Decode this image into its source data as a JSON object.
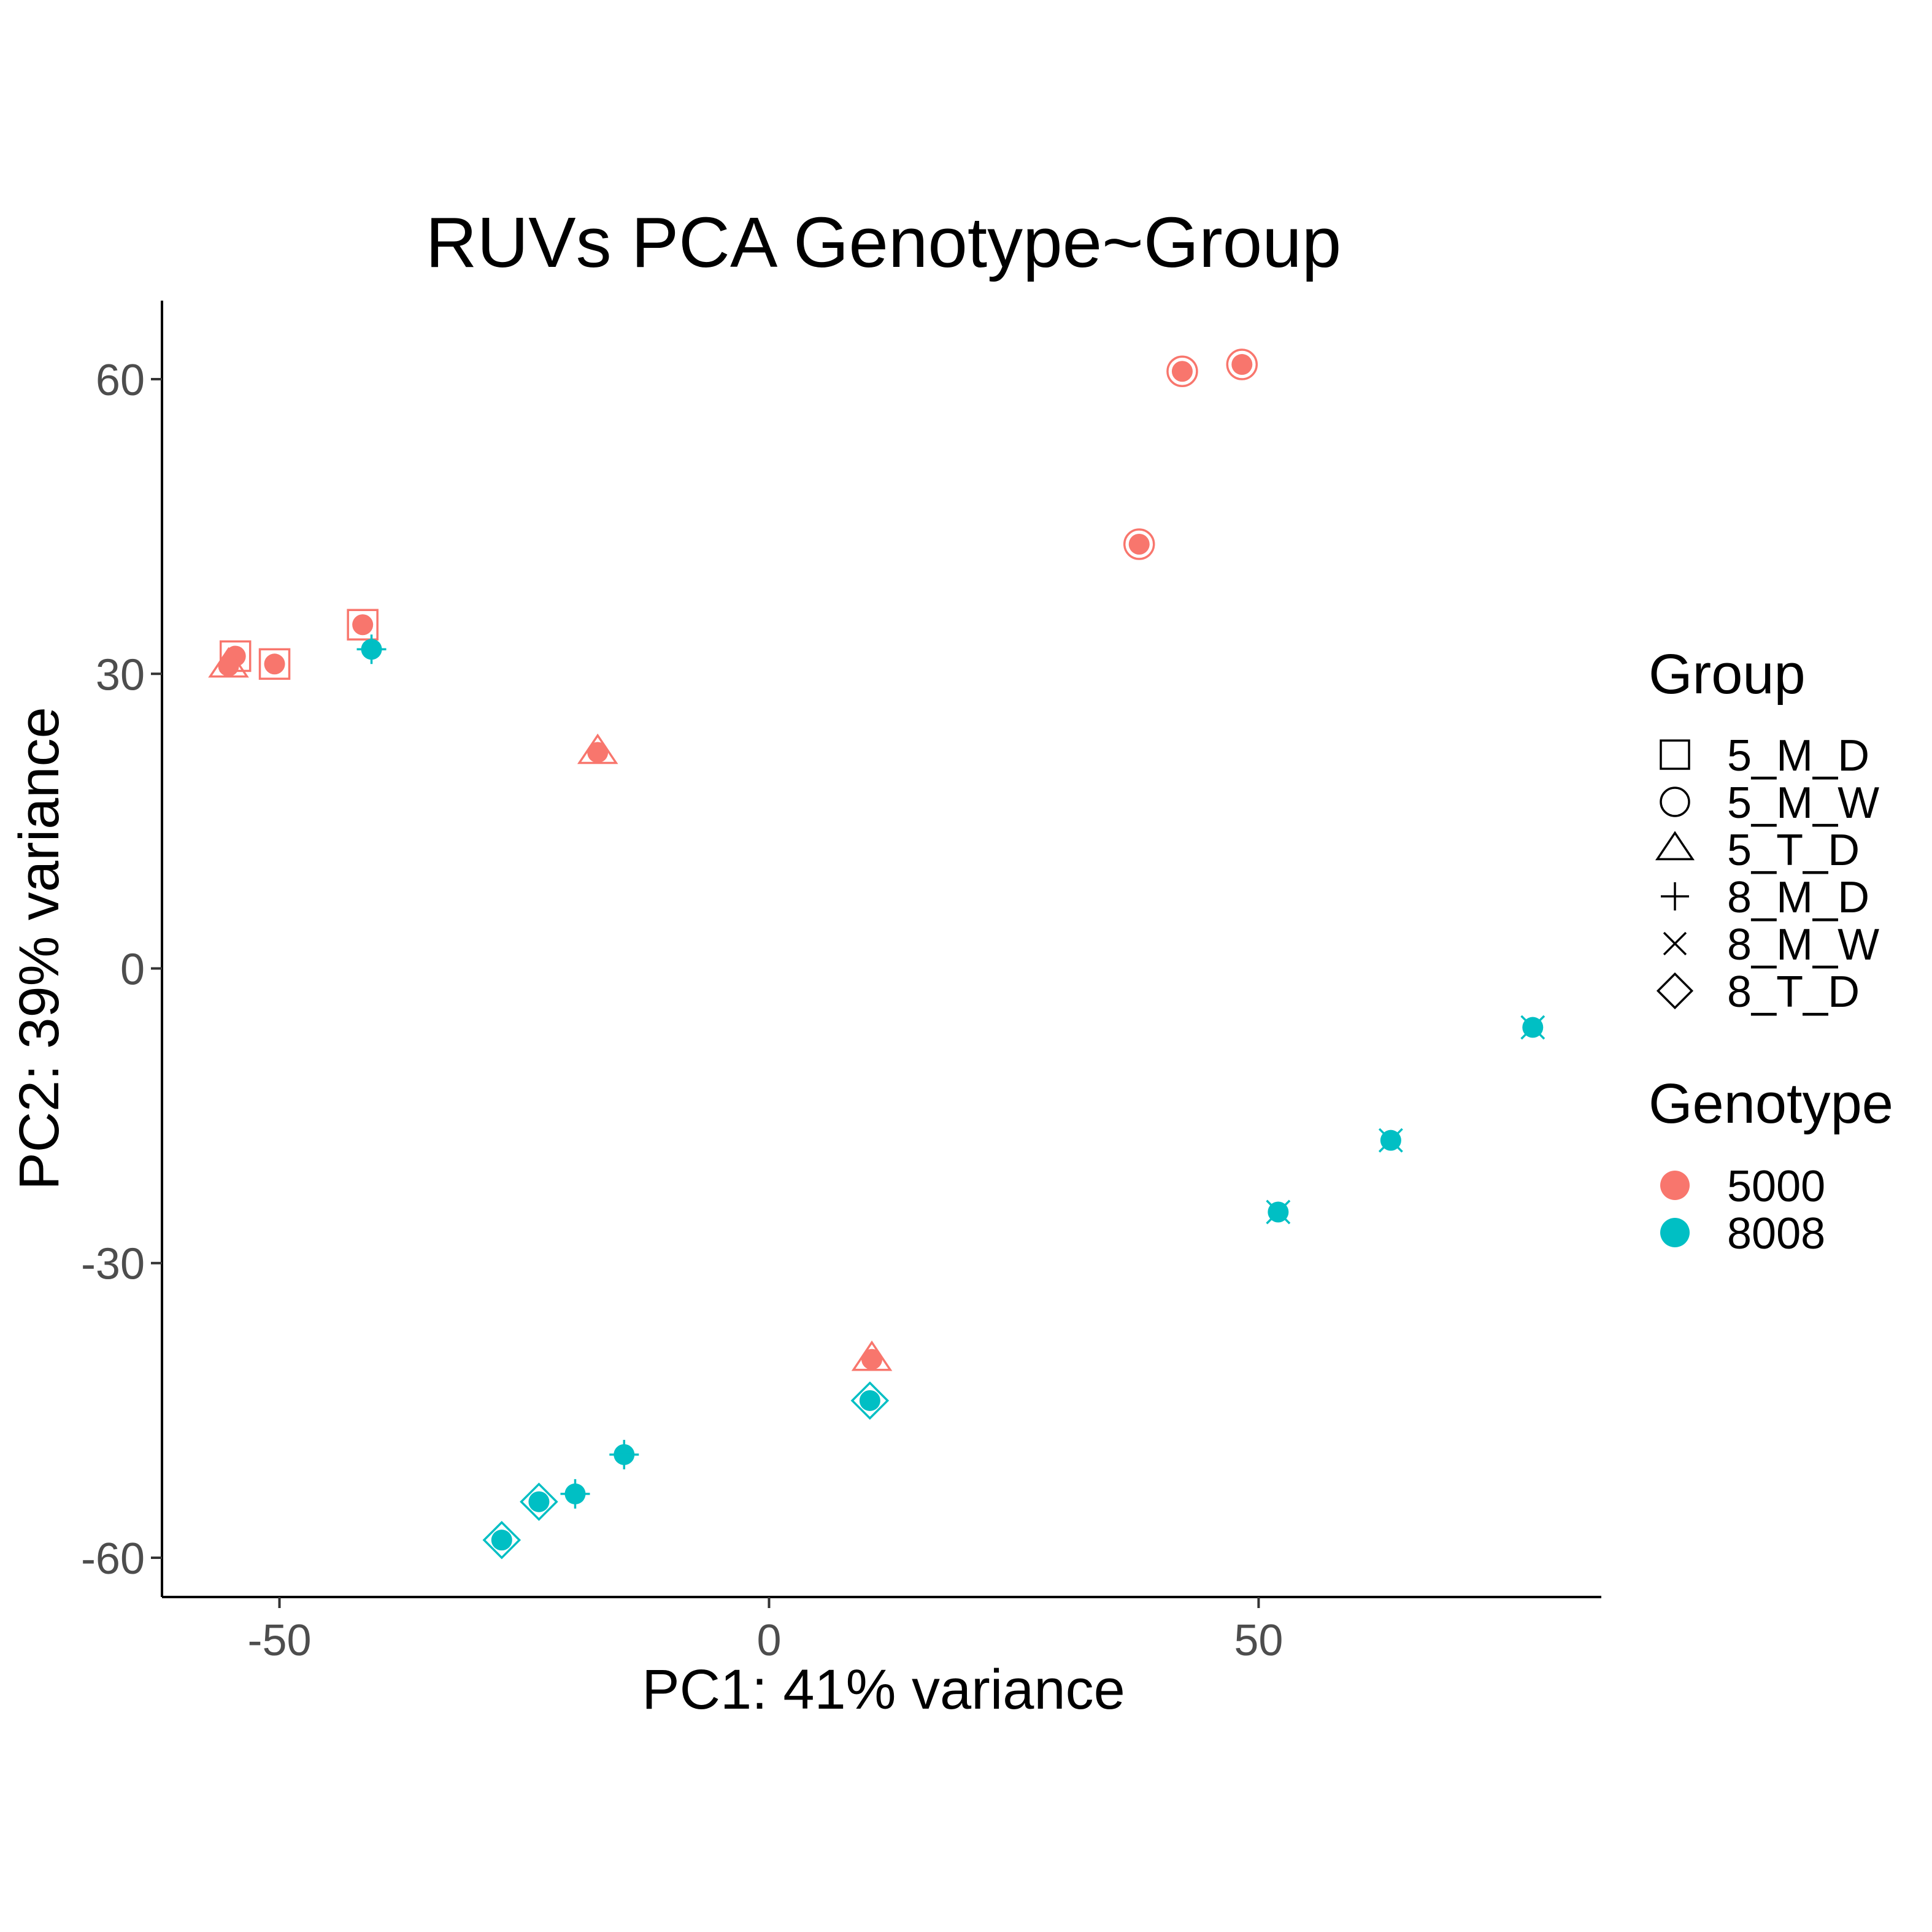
{
  "chart_data": {
    "type": "scatter",
    "title": "RUVs PCA Genotype~Group",
    "xlabel": "PC1: 41% variance",
    "ylabel": "PC2: 39% variance",
    "xlim": [
      -62,
      85
    ],
    "ylim": [
      -64,
      68
    ],
    "x_ticks": [
      -50,
      0,
      50
    ],
    "y_ticks": [
      -60,
      -30,
      0,
      30,
      60
    ],
    "x_tick_labels": [
      "-50",
      "0",
      "50"
    ],
    "y_tick_labels": [
      "-60",
      "-30",
      "0",
      "30",
      "60"
    ],
    "grid": false,
    "legend_placement": "right",
    "legends": {
      "group": {
        "title": "Group",
        "items": [
          {
            "label": "5_M_D",
            "shape": "square"
          },
          {
            "label": "5_M_W",
            "shape": "circle"
          },
          {
            "label": "5_T_D",
            "shape": "triangle"
          },
          {
            "label": "8_M_D",
            "shape": "plus"
          },
          {
            "label": "8_M_W",
            "shape": "cross"
          },
          {
            "label": "8_T_D",
            "shape": "diamond"
          }
        ]
      },
      "genotype": {
        "title": "Genotype",
        "items": [
          {
            "label": "5000",
            "color": "#F8766D"
          },
          {
            "label": "8008",
            "color": "#00BFC4"
          }
        ]
      }
    },
    "points": [
      {
        "x": -41.5,
        "y": 35.0,
        "group": "5_M_D",
        "genotype": "5000"
      },
      {
        "x": -54.5,
        "y": 31.8,
        "group": "5_M_D",
        "genotype": "5000"
      },
      {
        "x": -50.5,
        "y": 31.0,
        "group": "5_M_D",
        "genotype": "5000"
      },
      {
        "x": 42.2,
        "y": 60.8,
        "group": "5_M_W",
        "genotype": "5000"
      },
      {
        "x": 48.3,
        "y": 61.5,
        "group": "5_M_W",
        "genotype": "5000"
      },
      {
        "x": 37.8,
        "y": 43.2,
        "group": "5_M_W",
        "genotype": "5000"
      },
      {
        "x": -55.2,
        "y": 30.8,
        "group": "5_T_D",
        "genotype": "5000"
      },
      {
        "x": -17.5,
        "y": 22.0,
        "group": "5_T_D",
        "genotype": "5000"
      },
      {
        "x": 10.5,
        "y": -39.8,
        "group": "5_T_D",
        "genotype": "5000"
      },
      {
        "x": -40.6,
        "y": 32.5,
        "group": "8_M_D",
        "genotype": "8008"
      },
      {
        "x": -19.8,
        "y": -53.5,
        "group": "8_M_D",
        "genotype": "8008"
      },
      {
        "x": -14.8,
        "y": -49.5,
        "group": "8_M_D",
        "genotype": "8008"
      },
      {
        "x": 78.0,
        "y": -6.0,
        "group": "8_M_W",
        "genotype": "8008"
      },
      {
        "x": 63.5,
        "y": -17.5,
        "group": "8_M_W",
        "genotype": "8008"
      },
      {
        "x": 52.0,
        "y": -24.8,
        "group": "8_M_W",
        "genotype": "8008"
      },
      {
        "x": -27.3,
        "y": -58.2,
        "group": "8_T_D",
        "genotype": "8008"
      },
      {
        "x": -23.5,
        "y": -54.3,
        "group": "8_T_D",
        "genotype": "8008"
      },
      {
        "x": 10.3,
        "y": -44.0,
        "group": "8_T_D",
        "genotype": "8008"
      }
    ]
  }
}
